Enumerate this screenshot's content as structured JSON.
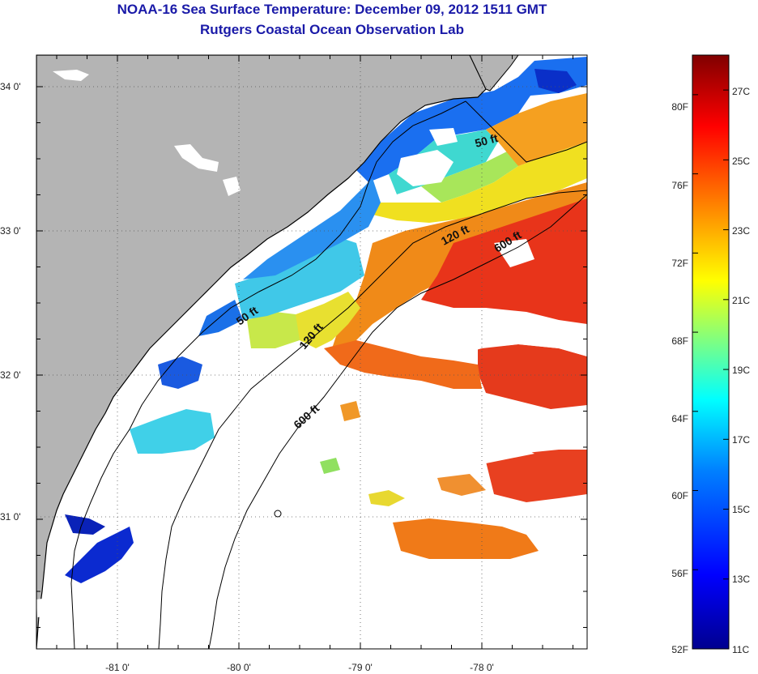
{
  "title": {
    "line1": "NOAA-16 Sea Surface Temperature:  December 09, 2012 1511 GMT",
    "line2": "Rutgers Coastal Ocean Observation Lab"
  },
  "map": {
    "lat_ticks": [
      {
        "value": 34,
        "label": "34 0'"
      },
      {
        "value": 33,
        "label": "33 0'"
      },
      {
        "value": 32,
        "label": "32 0'"
      },
      {
        "value": 31,
        "label": "31 0'"
      }
    ],
    "lon_ticks": [
      {
        "value": -81,
        "label": "-81 0'"
      },
      {
        "value": -80,
        "label": "-80 0'"
      },
      {
        "value": -79,
        "label": "-79 0'"
      },
      {
        "value": -78,
        "label": "-78 0'"
      }
    ],
    "contour_labels": {
      "north_50": "50 ft",
      "north_120": "120 ft",
      "north_600": "600 ft",
      "south_50": "50 ft",
      "south_120": "120 ft",
      "south_600": "600 ft"
    },
    "colors": {
      "land": "#b4b4b4",
      "ocean_no_data": "#ffffff",
      "coast": "#000000"
    }
  },
  "colorbar": {
    "fahrenheit": [
      "80F",
      "76F",
      "72F",
      "68F",
      "64F",
      "60F",
      "56F",
      "52F"
    ],
    "celsius": [
      "27C",
      "25C",
      "23C",
      "21C",
      "19C",
      "17C",
      "15C",
      "13C",
      "11C"
    ],
    "colors": [
      "#00008f",
      "#0000ff",
      "#0080ff",
      "#00ffff",
      "#80ff80",
      "#ffff00",
      "#ff8000",
      "#ff0000",
      "#800000"
    ]
  }
}
